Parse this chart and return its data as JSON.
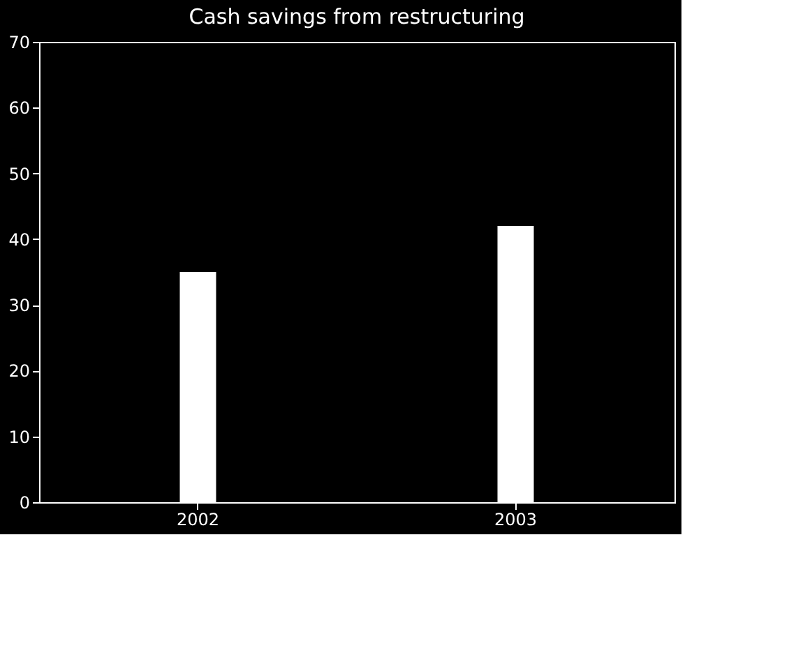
{
  "chart_data": {
    "type": "bar",
    "title": "Cash savings from restructuring",
    "categories": [
      "2002",
      "2003"
    ],
    "values": [
      35,
      42
    ],
    "color": "#ffffff",
    "ylim": [
      0,
      70
    ],
    "yticks": [
      0,
      10,
      20,
      30,
      40,
      50,
      60,
      70
    ],
    "grid": false
  }
}
